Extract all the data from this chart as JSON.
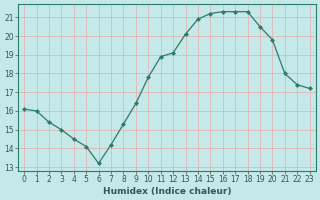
{
  "x": [
    0,
    1,
    2,
    3,
    4,
    5,
    6,
    7,
    8,
    9,
    10,
    11,
    12,
    13,
    14,
    15,
    16,
    17,
    18,
    19,
    20,
    21,
    22,
    23
  ],
  "y": [
    16.1,
    16.0,
    15.4,
    15.0,
    14.5,
    14.1,
    13.2,
    14.2,
    15.3,
    16.4,
    17.8,
    18.9,
    19.1,
    20.1,
    20.9,
    21.2,
    21.3,
    21.3,
    21.3,
    20.5,
    19.8,
    18.0,
    17.4,
    17.2
  ],
  "line_color": "#2e7b6e",
  "marker": "D",
  "marker_size": 2.0,
  "bg_color": "#c5e8e8",
  "grid_color": "#e0b8b8",
  "xlabel": "Humidex (Indice chaleur)",
  "ylabel_ticks": [
    13,
    14,
    15,
    16,
    17,
    18,
    19,
    20,
    21
  ],
  "xlim": [
    -0.5,
    23.5
  ],
  "ylim": [
    12.8,
    21.7
  ],
  "tick_fontsize": 5.5,
  "xlabel_fontsize": 6.5
}
